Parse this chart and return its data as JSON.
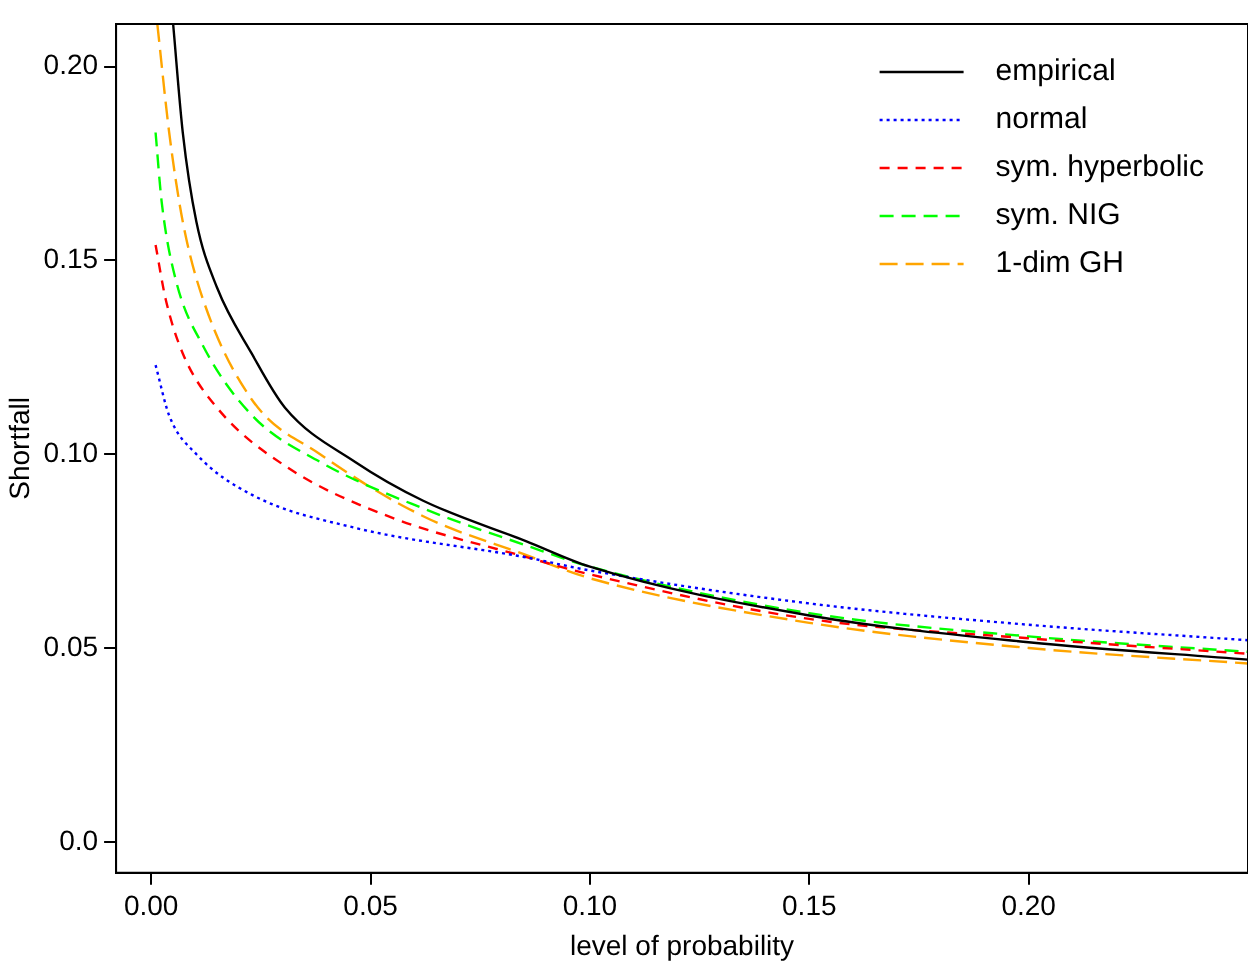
{
  "chart_data": {
    "type": "line",
    "xlabel": "level of probability",
    "ylabel": "Shortfall",
    "xlim": [
      -0.008,
      0.25
    ],
    "ylim": [
      -0.008,
      0.211
    ],
    "xticks": [
      {
        "value": 0,
        "label": "0.00"
      },
      0.05,
      {
        "value": 0.1,
        "label": "0.10"
      },
      0.15,
      {
        "value": 0.2,
        "label": "0.20"
      }
    ],
    "yticks": [
      {
        "value": 0,
        "label": "0.0"
      },
      0.05,
      {
        "value": 0.1,
        "label": "0.10"
      },
      0.15,
      {
        "value": 0.2,
        "label": "0.20"
      }
    ],
    "grid": false,
    "legend": "top right",
    "marker": "none",
    "series": [
      {
        "name": "empirical",
        "color": "#000000",
        "line_style": "solid",
        "x": [
          0.005,
          0.0072,
          0.0103,
          0.015,
          0.0229,
          0.0305,
          0.0465,
          0.062,
          0.0854,
          0.1,
          0.15,
          0.2,
          0.25
        ],
        "values": [
          0.211,
          0.183,
          0.16,
          0.143,
          0.126,
          0.112,
          0.098,
          0.088,
          0.0776,
          0.071,
          0.0584,
          0.0515,
          0.047
        ]
      },
      {
        "name": "normal",
        "color": "#0000ff",
        "line_style": "dotted",
        "x": [
          0.001,
          0.0041,
          0.0103,
          0.023,
          0.0465,
          0.0854,
          0.1,
          0.15,
          0.2,
          0.25
        ],
        "values": [
          0.123,
          0.11,
          0.1,
          0.0895,
          0.081,
          0.0734,
          0.07,
          0.0615,
          0.056,
          0.052
        ]
      },
      {
        "name": "sym. hyperbolic",
        "color": "#ff0000",
        "line_style": "dashed",
        "x": [
          0.001,
          0.0033,
          0.0072,
          0.015,
          0.0305,
          0.054,
          0.0854,
          0.1,
          0.15,
          0.2,
          0.25
        ],
        "values": [
          0.154,
          0.14,
          0.126,
          0.112,
          0.097,
          0.084,
          0.0735,
          0.069,
          0.0575,
          0.0525,
          0.0485
        ]
      },
      {
        "name": "sym. NIG",
        "color": "#00ff00",
        "line_style": "dashed",
        "x": [
          0.001,
          0.0024,
          0.0056,
          0.0118,
          0.023,
          0.0385,
          0.062,
          0.0854,
          0.1,
          0.15,
          0.2,
          0.25
        ],
        "values": [
          0.183,
          0.165,
          0.145,
          0.128,
          0.11,
          0.098,
          0.086,
          0.0765,
          0.071,
          0.059,
          0.053,
          0.049
        ]
      },
      {
        "name": "1-dim GH",
        "color": "#ffa500",
        "line_style": "dashed",
        "x": [
          0.0014,
          0.0041,
          0.0072,
          0.0118,
          0.023,
          0.0385,
          0.062,
          0.0854,
          0.1,
          0.15,
          0.2,
          0.25
        ],
        "values": [
          0.211,
          0.183,
          0.16,
          0.14,
          0.114,
          0.1,
          0.084,
          0.074,
          0.068,
          0.0565,
          0.05,
          0.046
        ]
      }
    ]
  }
}
